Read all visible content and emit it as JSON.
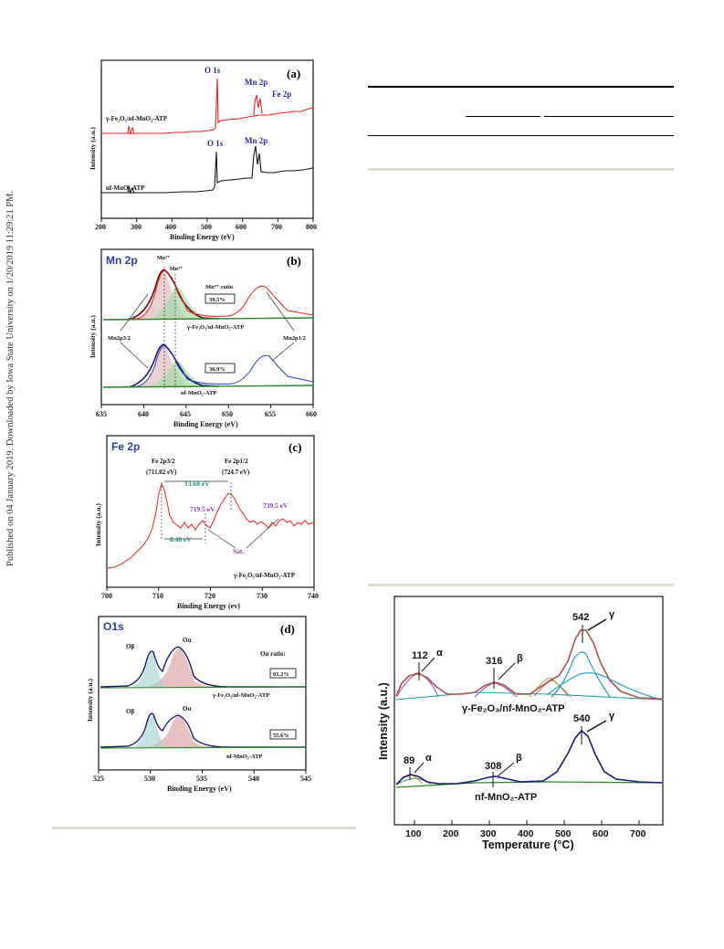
{
  "sidebar_note": "Published on 04 January 2019. Downloaded by Iowa State University on 1/20/2019 11:29:21 PM.",
  "chart_data": [
    {
      "id": "a",
      "type": "line",
      "panel_label": "(a)",
      "xlabel": "Binding Energy (eV)",
      "ylabel": "Intensity (a.u.)",
      "xlim": [
        200,
        800
      ],
      "xticks": [
        200,
        300,
        400,
        500,
        600,
        700,
        800
      ],
      "series": [
        {
          "name": "γ-Fe2O3/nf-MnO2-ATP",
          "color": "#ee2020"
        },
        {
          "name": "nf-MnO2-ATP",
          "color": "#111111"
        }
      ],
      "labels": {
        "o1s_top": "O 1s",
        "mn2p_top": "Mn 2p",
        "fe2p_top": "Fe 2p",
        "o1s_bot": "O 1s",
        "mn2p_bot": "Mn 2p",
        "sample_top": "γ-Fe₂O₃/nf-MnO₂-ATP",
        "sample_bot": "nf-MnO₂-ATP"
      }
    },
    {
      "id": "b",
      "type": "line",
      "panel_label": "(b)",
      "title": "Mn 2p",
      "xlabel": "Binding Energy (eV)",
      "ylabel": "Intensity (a.u.)",
      "xlim": [
        635,
        660
      ],
      "xticks": [
        635,
        640,
        645,
        650,
        655,
        660
      ],
      "labels": {
        "mn3": "Mn³⁺",
        "mn4": "Mn⁴⁺",
        "ratio_title": "Mn⁴⁺ ratio",
        "ratio_top": "39.5%",
        "ratio_bot": "36.9%",
        "p32": "Mn2p3/2",
        "p12": "Mn2p1/2",
        "sample_top": "γ-Fe₂O₃/nf-MnO₂-ATP",
        "sample_bot": "nf-MnO₂-ATP"
      }
    },
    {
      "id": "c",
      "type": "line",
      "panel_label": "(c)",
      "title": "Fe 2p",
      "xlabel": "Binding Energy (ev)",
      "ylabel": "Intensity (a.u.)",
      "xlim": [
        700,
        740
      ],
      "xticks": [
        700,
        710,
        720,
        730,
        740
      ],
      "labels": {
        "p32": "Fe 2p3/2",
        "p32_val": "(711.02 eV)",
        "p12": "Fe 2p1/2",
        "p12_val": "(724.7 eV)",
        "split": "13.68 eV",
        "sat_gap": "8.48 eV",
        "sat1": "719.5 eV",
        "sat2": "739.5 eV",
        "sat": "Sat.",
        "sample": "γ-Fe₂O₃/nf-MnO₂-ATP"
      }
    },
    {
      "id": "d",
      "type": "line",
      "panel_label": "(d)",
      "title": "O1s",
      "xlabel": "Binding Energy (eV)",
      "ylabel": "Intensity (a.u.)",
      "xlim": [
        525,
        545
      ],
      "xticks": [
        525,
        530,
        535,
        540,
        545
      ],
      "labels": {
        "obeta": "Oβ",
        "oalpha": "Oα",
        "ratio_title": "Oα ratio:",
        "ratio_top": "61.2%",
        "ratio_bot": "55.6%",
        "sample_top": "γ-Fe₂O₃/nf-MnO₂-ATP",
        "sample_bot": "nf-MnO₂-ATP"
      }
    },
    {
      "id": "tpr",
      "type": "line",
      "xlabel": "Temperature (°C)",
      "ylabel": "Intensity (a.u.)",
      "xlim": [
        30,
        750
      ],
      "xticks": [
        100,
        200,
        300,
        400,
        500,
        600,
        700
      ],
      "series": [
        {
          "name": "γ-Fe2O3/nf-MnO2-ATP",
          "peaks": [
            {
              "x": 112,
              "label": "α"
            },
            {
              "x": 316,
              "label": "β"
            },
            {
              "x": 542,
              "label": "γ"
            }
          ]
        },
        {
          "name": "nf-MnO2-ATP",
          "peaks": [
            {
              "x": 89,
              "label": "α"
            },
            {
              "x": 308,
              "label": "β"
            },
            {
              "x": 540,
              "label": "γ"
            }
          ]
        }
      ],
      "labels": {
        "sample_top": "γ-Fe₂O₃/nf-MnO₂-ATP",
        "sample_bot": "nf-MnO₂-ATP",
        "p112": "112",
        "p316": "316",
        "p542": "542",
        "p89": "89",
        "p308": "308",
        "p540": "540",
        "alpha": "α",
        "beta": "β",
        "gamma": "γ"
      }
    }
  ]
}
